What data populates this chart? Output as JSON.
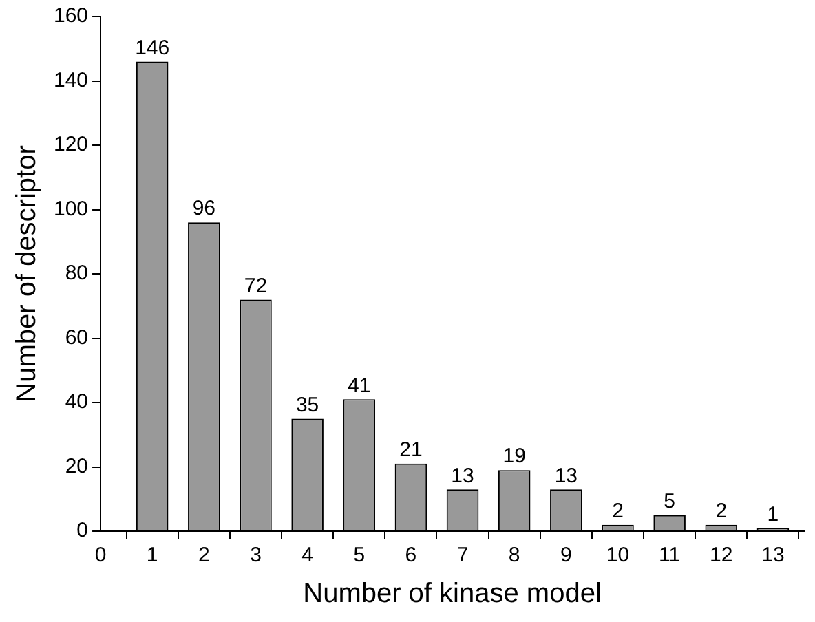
{
  "chart_data": {
    "type": "bar",
    "xlabel": "Number of kinase model",
    "ylabel": "Number of descriptor",
    "x": [
      1,
      2,
      3,
      4,
      5,
      6,
      7,
      8,
      9,
      10,
      11,
      12,
      13
    ],
    "values": [
      146,
      96,
      72,
      35,
      41,
      21,
      13,
      19,
      13,
      2,
      5,
      2,
      1
    ],
    "color": "#999999",
    "xlim": [
      0,
      13.6
    ],
    "xticks": [
      0,
      1,
      2,
      3,
      4,
      5,
      6,
      7,
      8,
      9,
      10,
      11,
      12,
      13
    ],
    "ylim": [
      0,
      160
    ],
    "yticks": [
      0,
      20,
      40,
      60,
      80,
      100,
      120,
      140,
      160
    ],
    "grid": false,
    "legend": false,
    "data_labels": true
  }
}
